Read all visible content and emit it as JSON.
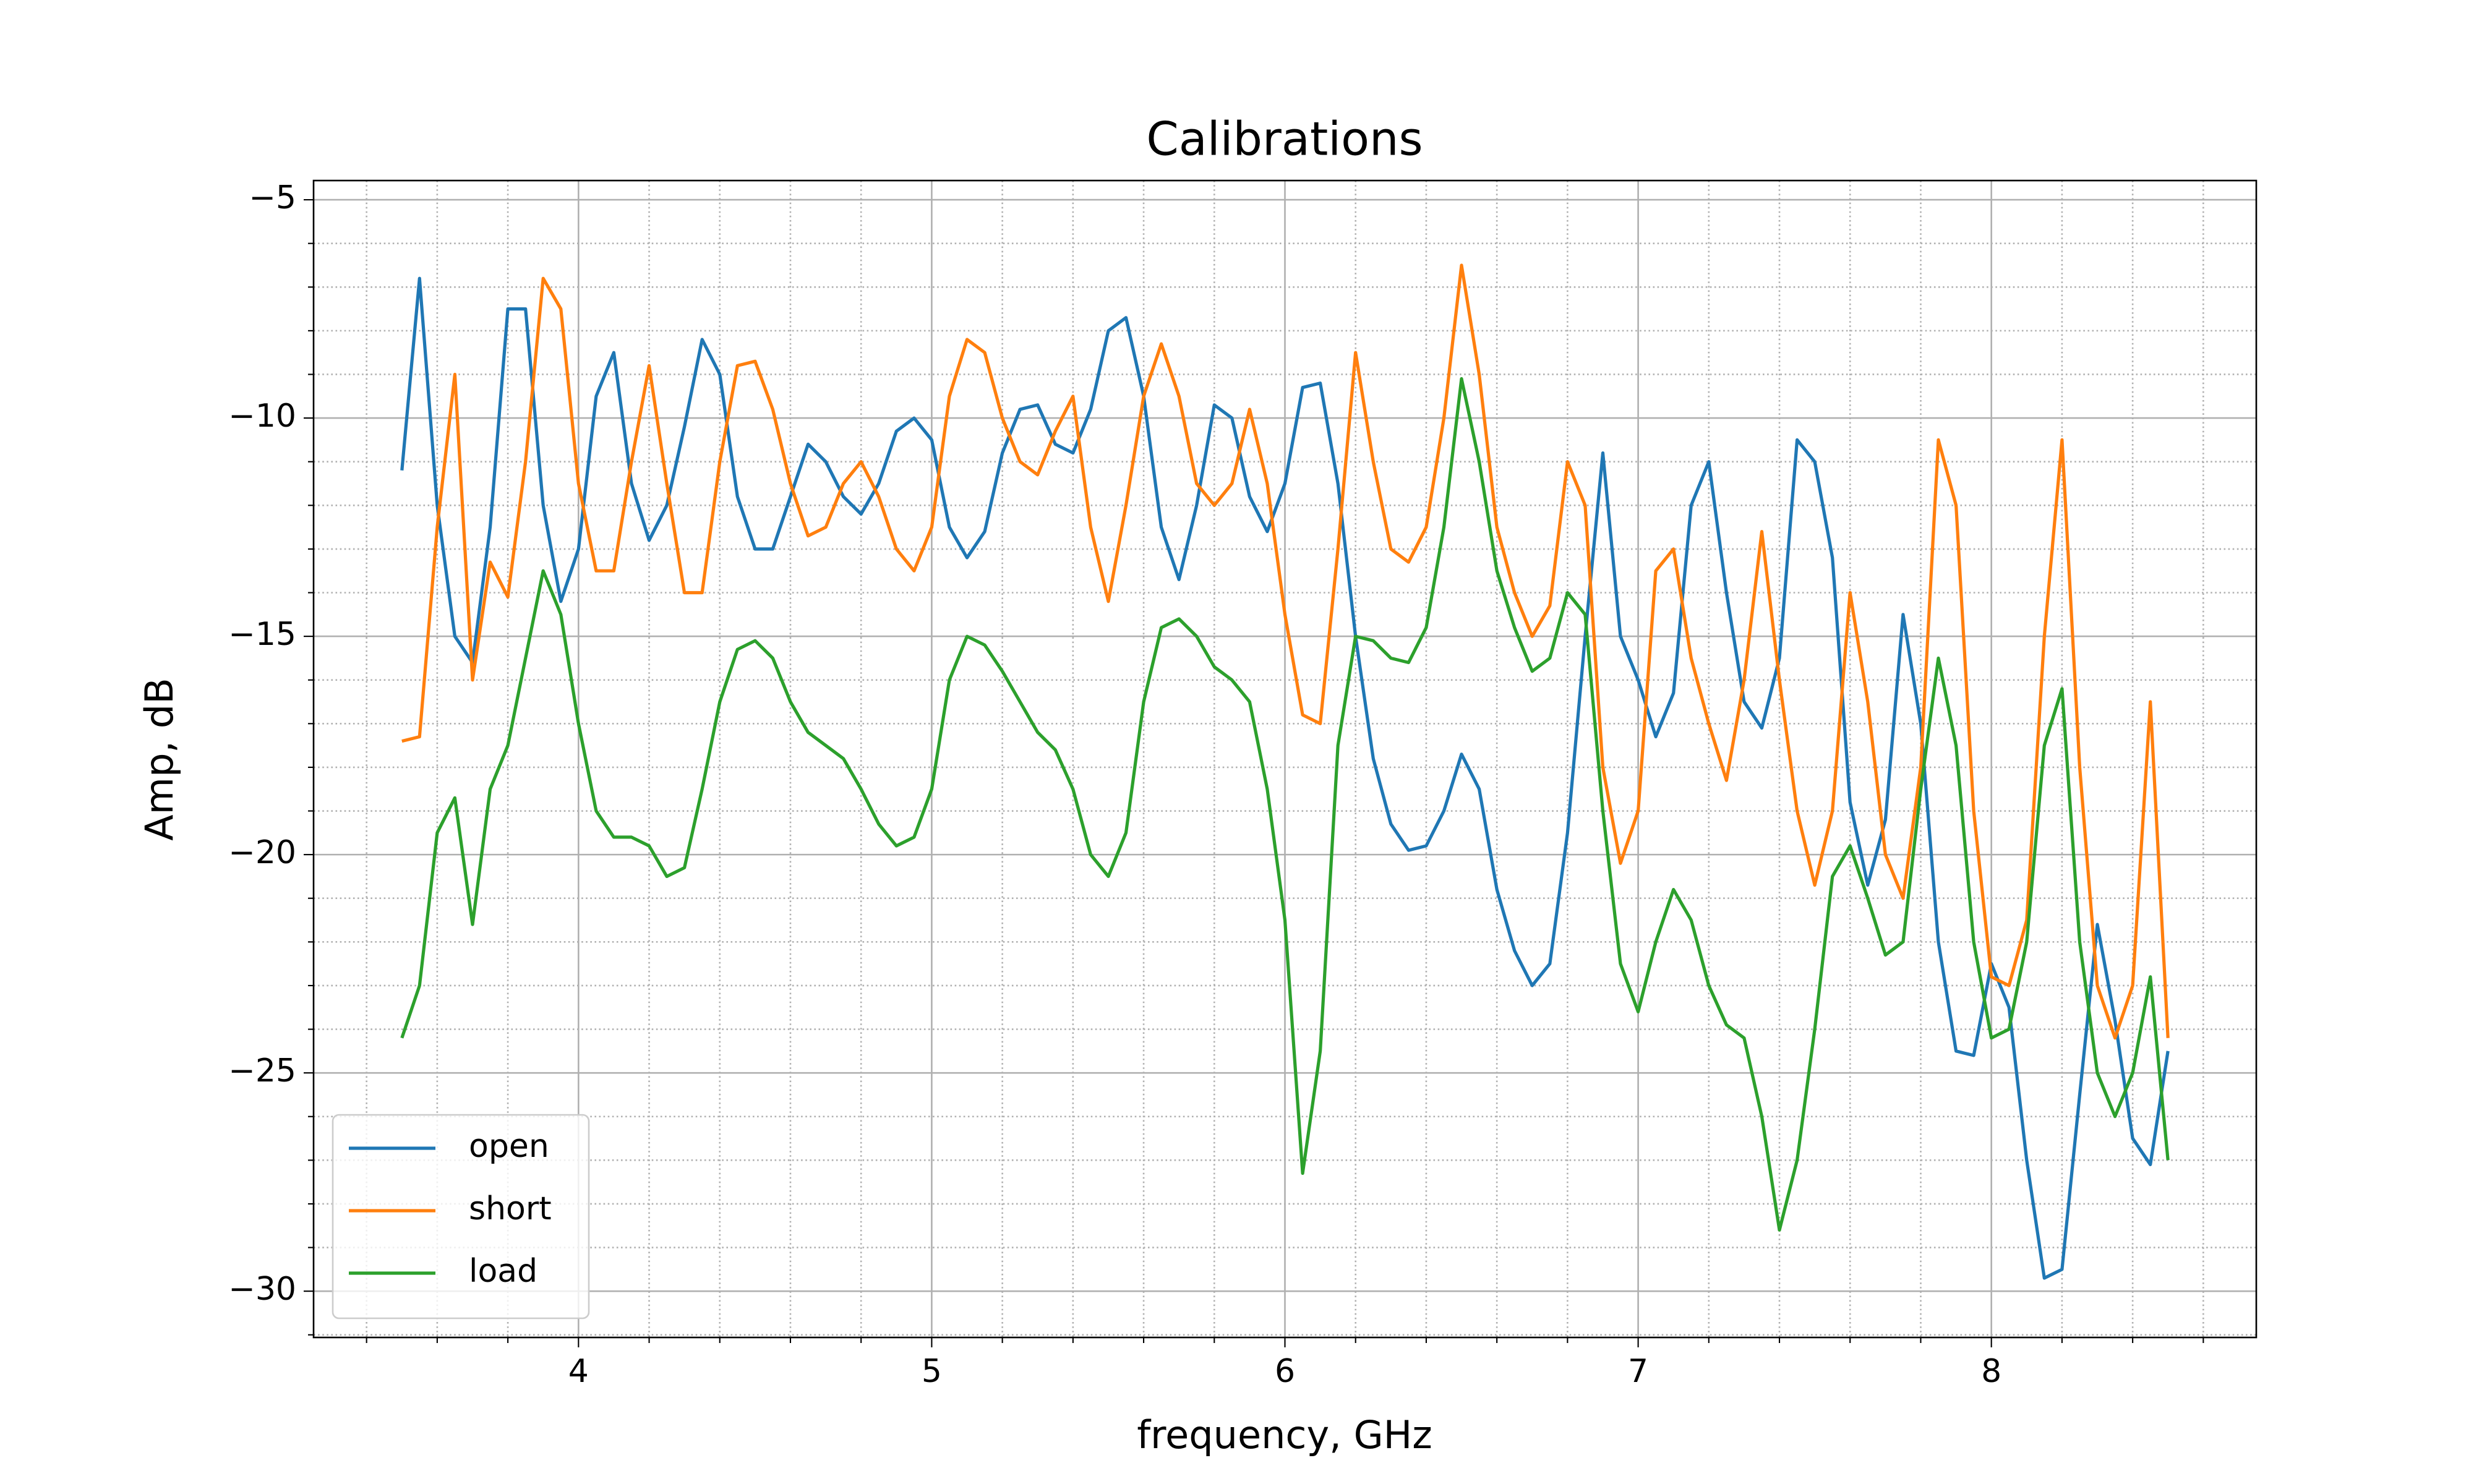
{
  "chart_data": {
    "type": "line",
    "title": "Calibrations",
    "xlabel": "frequency, GHz",
    "ylabel": "Amp, dB",
    "x": [
      3.5,
      3.55,
      3.6,
      3.65,
      3.7,
      3.75,
      3.8,
      3.85,
      3.9,
      3.95,
      4.0,
      4.05,
      4.1,
      4.15,
      4.2,
      4.25,
      4.3,
      4.35,
      4.4,
      4.45,
      4.5,
      4.55,
      4.6,
      4.65,
      4.7,
      4.75,
      4.8,
      4.85,
      4.9,
      4.95,
      5.0,
      5.05,
      5.1,
      5.15,
      5.2,
      5.25,
      5.3,
      5.35,
      5.4,
      5.45,
      5.5,
      5.55,
      5.6,
      5.65,
      5.7,
      5.75,
      5.8,
      5.85,
      5.9,
      5.95,
      6.0,
      6.05,
      6.1,
      6.15,
      6.2,
      6.25,
      6.3,
      6.35,
      6.4,
      6.45,
      6.5,
      6.55,
      6.6,
      6.65,
      6.7,
      6.75,
      6.8,
      6.85,
      6.9,
      6.95,
      7.0,
      7.05,
      7.1,
      7.15,
      7.2,
      7.25,
      7.3,
      7.35,
      7.4,
      7.45,
      7.5,
      7.55,
      7.6,
      7.65,
      7.7,
      7.75,
      7.8,
      7.85,
      7.9,
      7.95,
      8.0,
      8.05,
      8.1,
      8.15,
      8.2,
      8.25,
      8.3,
      8.35,
      8.4,
      8.45,
      8.5
    ],
    "series": [
      {
        "name": "open",
        "color": "#1f77b4",
        "values": [
          -11.2,
          -6.8,
          -12.0,
          -15.0,
          -15.6,
          -12.5,
          -7.5,
          -7.5,
          -12.0,
          -14.2,
          -13.0,
          -9.5,
          -8.5,
          -11.5,
          -12.8,
          -12.0,
          -10.2,
          -8.2,
          -9.0,
          -11.8,
          -13.0,
          -13.0,
          -11.8,
          -10.6,
          -11.0,
          -11.8,
          -12.2,
          -11.5,
          -10.3,
          -10.0,
          -10.5,
          -12.5,
          -13.2,
          -12.6,
          -10.8,
          -9.8,
          -9.7,
          -10.6,
          -10.8,
          -9.8,
          -8.0,
          -7.7,
          -9.5,
          -12.5,
          -13.7,
          -12.0,
          -9.7,
          -10.0,
          -11.8,
          -12.6,
          -11.5,
          -9.3,
          -9.2,
          -11.5,
          -15.0,
          -17.8,
          -19.3,
          -19.9,
          -19.8,
          -19.0,
          -17.7,
          -18.5,
          -20.8,
          -22.2,
          -23.0,
          -22.5,
          -19.5,
          -15.0,
          -10.8,
          -15.0,
          -16.0,
          -17.3,
          -16.3,
          -12.0,
          -11.0,
          -14.0,
          -16.5,
          -17.1,
          -15.5,
          -10.5,
          -11.0,
          -13.2,
          -18.8,
          -20.7,
          -19.2,
          -14.5,
          -17.0,
          -22.0,
          -24.5,
          -24.6,
          -22.5,
          -23.5,
          -27.0,
          -29.7,
          -29.5,
          -25.5,
          -21.6,
          -23.8,
          -26.5,
          -27.1,
          -24.5
        ]
      },
      {
        "name": "short",
        "color": "#ff7f0e",
        "values": [
          -17.4,
          -17.3,
          -12.5,
          -9.0,
          -16.0,
          -13.3,
          -14.1,
          -11.0,
          -6.8,
          -7.5,
          -11.5,
          -13.5,
          -13.5,
          -11.0,
          -8.8,
          -11.5,
          -14.0,
          -14.0,
          -11.0,
          -8.8,
          -8.7,
          -9.8,
          -11.5,
          -12.7,
          -12.5,
          -11.5,
          -11.0,
          -11.8,
          -13.0,
          -13.5,
          -12.5,
          -9.5,
          -8.2,
          -8.5,
          -10.0,
          -11.0,
          -11.3,
          -10.3,
          -9.5,
          -12.5,
          -14.2,
          -12.0,
          -9.5,
          -8.3,
          -9.5,
          -11.5,
          -12.0,
          -11.5,
          -9.8,
          -11.5,
          -14.5,
          -16.8,
          -17.0,
          -13.0,
          -8.5,
          -11.0,
          -13.0,
          -13.3,
          -12.5,
          -10.0,
          -6.5,
          -9.0,
          -12.5,
          -14.0,
          -15.0,
          -14.3,
          -11.0,
          -12.0,
          -18.0,
          -20.2,
          -19.0,
          -13.5,
          -13.0,
          -15.5,
          -17.0,
          -18.3,
          -16.0,
          -12.6,
          -16.0,
          -19.0,
          -20.7,
          -19.0,
          -14.0,
          -16.5,
          -20.0,
          -21.0,
          -18.0,
          -10.5,
          -12.0,
          -19.0,
          -22.8,
          -23.0,
          -21.5,
          -15.0,
          -10.5,
          -18.0,
          -23.0,
          -24.2,
          -23.0,
          -16.5,
          -24.2
        ]
      },
      {
        "name": "load",
        "color": "#2ca02c",
        "values": [
          -24.2,
          -23.0,
          -19.5,
          -18.7,
          -21.6,
          -18.5,
          -17.5,
          -15.5,
          -13.5,
          -14.5,
          -17.0,
          -19.0,
          -19.6,
          -19.6,
          -19.8,
          -20.5,
          -20.3,
          -18.5,
          -16.5,
          -15.3,
          -15.1,
          -15.5,
          -16.5,
          -17.2,
          -17.5,
          -17.8,
          -18.5,
          -19.3,
          -19.8,
          -19.6,
          -18.5,
          -16.0,
          -15.0,
          -15.2,
          -15.8,
          -16.5,
          -17.2,
          -17.6,
          -18.5,
          -20.0,
          -20.5,
          -19.5,
          -16.5,
          -14.8,
          -14.6,
          -15.0,
          -15.7,
          -16.0,
          -16.5,
          -18.5,
          -21.5,
          -27.3,
          -24.5,
          -17.5,
          -15.0,
          -15.1,
          -15.5,
          -15.6,
          -14.8,
          -12.5,
          -9.1,
          -11.0,
          -13.5,
          -14.8,
          -15.8,
          -15.5,
          -14.0,
          -14.5,
          -19.0,
          -22.5,
          -23.6,
          -22.0,
          -20.8,
          -21.5,
          -23.0,
          -23.9,
          -24.2,
          -26.0,
          -28.6,
          -27.0,
          -24.0,
          -20.5,
          -19.8,
          -21.0,
          -22.3,
          -22.0,
          -18.5,
          -15.5,
          -17.5,
          -22.0,
          -24.2,
          -24.0,
          -22.0,
          -17.5,
          -16.2,
          -22.0,
          -25.0,
          -26.0,
          -25.0,
          -22.8,
          -27.0
        ]
      }
    ],
    "xlim": [
      3.25,
      8.75
    ],
    "ylim": [
      -31.06,
      -4.56
    ],
    "xticks": [
      4,
      5,
      6,
      7,
      8
    ],
    "yticks": [
      {
        "value": -5,
        "label": "−5"
      },
      {
        "value": -10,
        "label": "−10"
      },
      {
        "value": -15,
        "label": "−15"
      },
      {
        "value": -20,
        "label": "−20"
      },
      {
        "value": -25,
        "label": "−25"
      },
      {
        "value": -30,
        "label": "−30"
      }
    ],
    "xminorticks": [
      3.4,
      3.6,
      3.8,
      4.2,
      4.4,
      4.6,
      4.8,
      5.2,
      5.4,
      5.6,
      5.8,
      6.2,
      6.4,
      6.6,
      6.8,
      7.2,
      7.4,
      7.6,
      7.8,
      8.2,
      8.4,
      8.6
    ],
    "yminorticks": [
      -6,
      -7,
      -8,
      -9,
      -11,
      -12,
      -13,
      -14,
      -16,
      -17,
      -18,
      -19,
      -21,
      -22,
      -23,
      -24,
      -26,
      -27,
      -28,
      -29,
      -31
    ],
    "grid": true,
    "minor_grid": true,
    "legend": "lower left"
  }
}
